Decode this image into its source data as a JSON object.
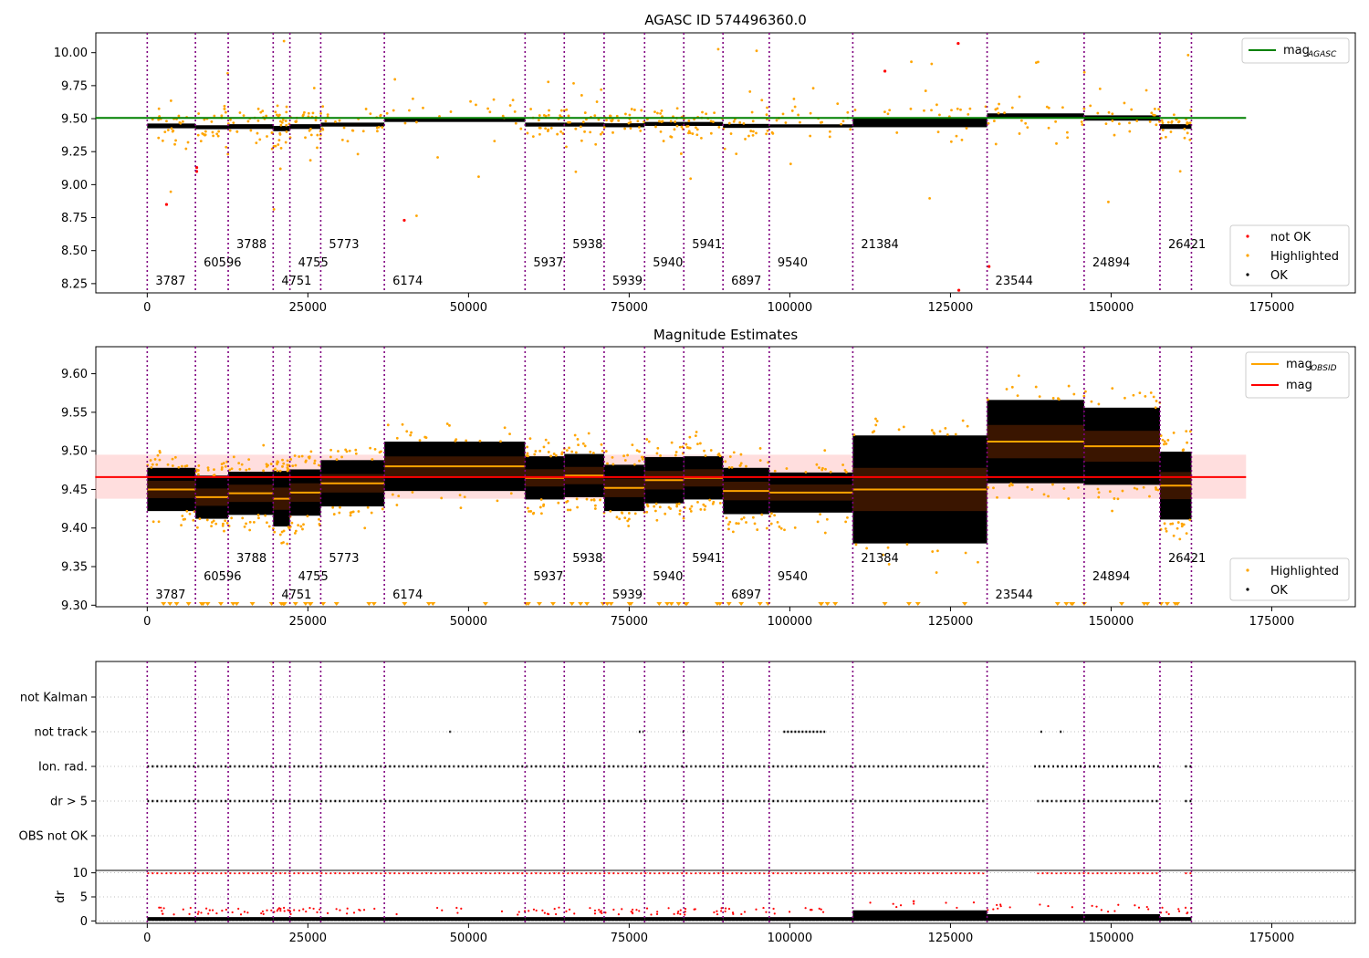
{
  "chart_data": [
    {
      "type": "scatter",
      "title": "AGASC ID 574496360.0",
      "xlim": [
        -8000,
        188000
      ],
      "ylim": [
        8.18,
        10.15
      ],
      "x_ticks": [
        0,
        25000,
        50000,
        75000,
        100000,
        125000,
        150000,
        175000
      ],
      "x_tick_labels": [
        "0",
        "25000",
        "50000",
        "75000",
        "100000",
        "125000",
        "150000",
        "175000"
      ],
      "y_ticks": [
        8.25,
        8.5,
        8.75,
        9.0,
        9.25,
        9.5,
        9.75,
        10.0
      ],
      "y_tick_labels": [
        "8.25",
        "8.50",
        "8.75",
        "9.00",
        "9.25",
        "9.50",
        "9.75",
        "10.00"
      ],
      "hline": {
        "label": "mag",
        "label_sub": "AGASC",
        "value": 9.505,
        "x_range": [
          0,
          171000
        ],
        "color": "#008000"
      },
      "legend_upper": [
        {
          "label": "mag",
          "sub": "AGASC",
          "color": "#008000"
        }
      ],
      "legend_lower": [
        {
          "label": "not OK",
          "color": "#ff0000"
        },
        {
          "label": "Highlighted",
          "color": "#ffa500"
        },
        {
          "label": "OK",
          "color": "#000000"
        }
      ],
      "segments": [
        {
          "obsid": "3787",
          "start": 0,
          "end": 7500,
          "mean": 9.445,
          "spread": 0.018
        },
        {
          "obsid": "60596",
          "start": 7500,
          "end": 12600,
          "mean": 9.435,
          "spread": 0.015
        },
        {
          "obsid": "3788",
          "start": 12600,
          "end": 19600,
          "mean": 9.44,
          "spread": 0.018
        },
        {
          "obsid": "4751",
          "start": 19600,
          "end": 22200,
          "mean": 9.425,
          "spread": 0.02
        },
        {
          "obsid": "4755",
          "start": 22200,
          "end": 27000,
          "mean": 9.44,
          "spread": 0.018
        },
        {
          "obsid": "5773",
          "start": 27000,
          "end": 36900,
          "mean": 9.455,
          "spread": 0.015
        },
        {
          "obsid": "6174",
          "start": 36900,
          "end": 58800,
          "mean": 9.49,
          "spread": 0.015
        },
        {
          "obsid": "5937",
          "start": 58800,
          "end": 64900,
          "mean": 9.455,
          "spread": 0.015
        },
        {
          "obsid": "5938",
          "start": 64900,
          "end": 71100,
          "mean": 9.455,
          "spread": 0.015
        },
        {
          "obsid": "5939",
          "start": 71100,
          "end": 77400,
          "mean": 9.45,
          "spread": 0.015
        },
        {
          "obsid": "5940",
          "start": 77400,
          "end": 83500,
          "mean": 9.46,
          "spread": 0.015
        },
        {
          "obsid": "5941",
          "start": 83500,
          "end": 89600,
          "mean": 9.46,
          "spread": 0.015
        },
        {
          "obsid": "6897",
          "start": 89600,
          "end": 96800,
          "mean": 9.445,
          "spread": 0.015
        },
        {
          "obsid": "9540",
          "start": 96800,
          "end": 109800,
          "mean": 9.445,
          "spread": 0.012
        },
        {
          "obsid": "21384",
          "start": 109800,
          "end": 130700,
          "mean": 9.47,
          "spread": 0.035
        },
        {
          "obsid": "23544",
          "start": 130700,
          "end": 145800,
          "mean": 9.52,
          "spread": 0.02
        },
        {
          "obsid": "24894",
          "start": 145800,
          "end": 157600,
          "mean": 9.505,
          "spread": 0.02
        },
        {
          "obsid": "26421",
          "start": 157600,
          "end": 162500,
          "mean": 9.44,
          "spread": 0.018
        }
      ],
      "boundaries": [
        0,
        7500,
        12600,
        19600,
        22200,
        27000,
        36900,
        58800,
        64900,
        71100,
        77400,
        83500,
        89600,
        96800,
        109800,
        130700,
        145800,
        157600,
        162500
      ]
    },
    {
      "type": "scatter",
      "title": "Magnitude Estimates",
      "xlim": [
        -8000,
        188000
      ],
      "ylim": [
        9.298,
        9.635
      ],
      "x_ticks": [
        0,
        25000,
        50000,
        75000,
        100000,
        125000,
        150000,
        175000
      ],
      "x_tick_labels": [
        "0",
        "25000",
        "50000",
        "75000",
        "100000",
        "125000",
        "150000",
        "175000"
      ],
      "y_ticks": [
        9.3,
        9.35,
        9.4,
        9.45,
        9.5,
        9.55,
        9.6
      ],
      "y_tick_labels": [
        "9.30",
        "9.35",
        "9.40",
        "9.45",
        "9.50",
        "9.55",
        "9.60"
      ],
      "mag": {
        "value": 9.466,
        "band": [
          9.438,
          9.495
        ],
        "x_range": [
          0,
          171000
        ],
        "color": "#ff0000"
      },
      "legend_upper": [
        {
          "label": "mag",
          "sub": "OBSID",
          "color": "#ffa500"
        },
        {
          "label": "mag",
          "sub": "",
          "color": "#ff0000"
        }
      ],
      "legend_lower": [
        {
          "label": "Highlighted",
          "color": "#ffa500"
        },
        {
          "label": "OK",
          "color": "#000000"
        }
      ],
      "segments": [
        {
          "obsid": "3787",
          "start": 0,
          "end": 7500,
          "mean": 9.45,
          "spread": 0.014
        },
        {
          "obsid": "60596",
          "start": 7500,
          "end": 12600,
          "mean": 9.44,
          "spread": 0.014
        },
        {
          "obsid": "3788",
          "start": 12600,
          "end": 19600,
          "mean": 9.445,
          "spread": 0.014
        },
        {
          "obsid": "4751",
          "start": 19600,
          "end": 22200,
          "mean": 9.438,
          "spread": 0.018
        },
        {
          "obsid": "4755",
          "start": 22200,
          "end": 27000,
          "mean": 9.446,
          "spread": 0.015
        },
        {
          "obsid": "5773",
          "start": 27000,
          "end": 36900,
          "mean": 9.458,
          "spread": 0.015
        },
        {
          "obsid": "6174",
          "start": 36900,
          "end": 58800,
          "mean": 9.48,
          "spread": 0.016
        },
        {
          "obsid": "5937",
          "start": 58800,
          "end": 64900,
          "mean": 9.465,
          "spread": 0.014
        },
        {
          "obsid": "5938",
          "start": 64900,
          "end": 71100,
          "mean": 9.468,
          "spread": 0.014
        },
        {
          "obsid": "5939",
          "start": 71100,
          "end": 77400,
          "mean": 9.452,
          "spread": 0.015
        },
        {
          "obsid": "5940",
          "start": 77400,
          "end": 83500,
          "mean": 9.462,
          "spread": 0.015
        },
        {
          "obsid": "5941",
          "start": 83500,
          "end": 89600,
          "mean": 9.465,
          "spread": 0.014
        },
        {
          "obsid": "6897",
          "start": 89600,
          "end": 96800,
          "mean": 9.448,
          "spread": 0.015
        },
        {
          "obsid": "9540",
          "start": 96800,
          "end": 109800,
          "mean": 9.446,
          "spread": 0.013
        },
        {
          "obsid": "21384",
          "start": 109800,
          "end": 130700,
          "mean": 9.45,
          "spread": 0.035
        },
        {
          "obsid": "23544",
          "start": 130700,
          "end": 145800,
          "mean": 9.512,
          "spread": 0.027
        },
        {
          "obsid": "24894",
          "start": 145800,
          "end": 157600,
          "mean": 9.506,
          "spread": 0.025
        },
        {
          "obsid": "26421",
          "start": 157600,
          "end": 162500,
          "mean": 9.455,
          "spread": 0.022
        }
      ]
    },
    {
      "type": "scatter",
      "title": "",
      "xlim": [
        -8000,
        188000
      ],
      "flag_labels": [
        "not Kalman",
        "not track",
        "Ion. rad.",
        "dr > 5",
        "OBS not OK"
      ],
      "flag_segments": {
        "not Kalman": [],
        "not track": [
          [
            47000,
            47500
          ],
          [
            76500,
            77200
          ],
          [
            83300,
            83500
          ],
          [
            99000,
            105500
          ],
          [
            139000,
            139500
          ],
          [
            142000,
            142600
          ]
        ],
        "Ion. rad.": [
          [
            0,
            130700
          ],
          [
            138000,
            157600
          ],
          [
            161500,
            162500
          ]
        ],
        "dr > 5": [
          [
            0,
            130700
          ],
          [
            138500,
            157600
          ],
          [
            161500,
            162500
          ]
        ],
        "OBS not OK": []
      }
    },
    {
      "type": "scatter",
      "title": "",
      "ylabel": "dr",
      "xlim": [
        -8000,
        188000
      ],
      "ylim": [
        -0.5,
        10.5
      ],
      "y_ticks": [
        0,
        5,
        10
      ],
      "y_tick_labels": [
        "0",
        "5",
        "10"
      ],
      "x_ticks": [
        0,
        25000,
        50000,
        75000,
        100000,
        125000,
        150000,
        175000
      ],
      "x_tick_labels": [
        "0",
        "25000",
        "50000",
        "75000",
        "100000",
        "125000",
        "150000",
        "175000"
      ]
    }
  ]
}
